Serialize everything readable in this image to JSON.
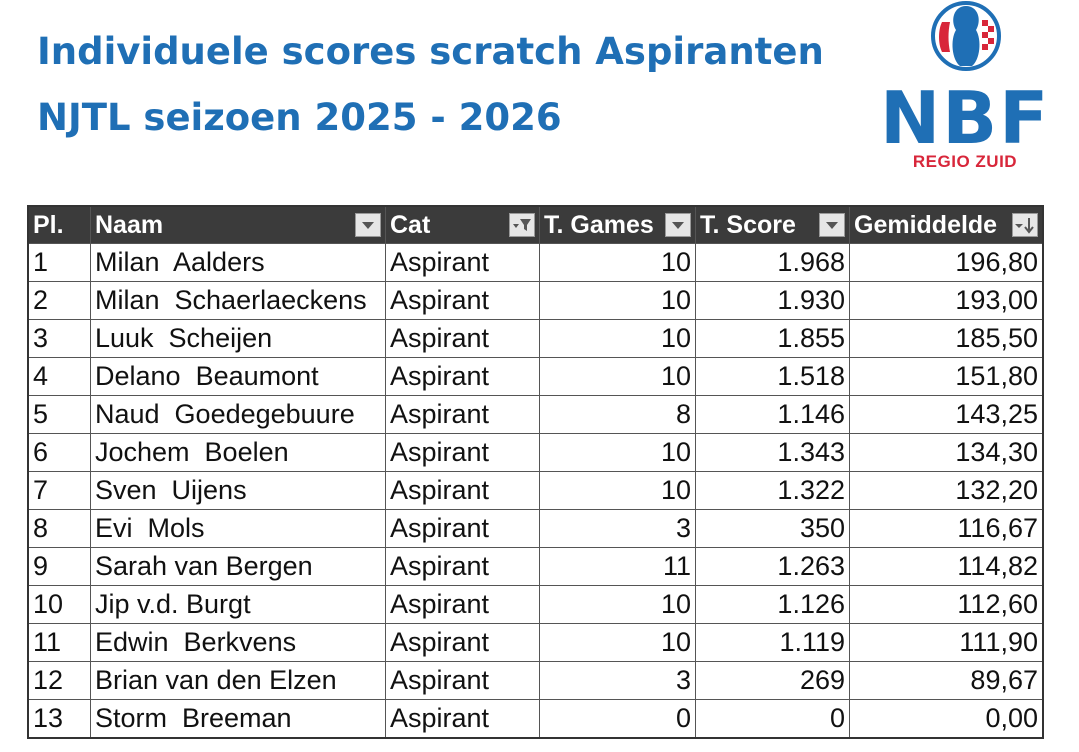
{
  "header": {
    "title_line1": "Individuele scores scratch Aspiranten",
    "title_line2": "NJTL seizoen 2025 - 2026"
  },
  "logo": {
    "text": "NBF",
    "subtext": "REGIO ZUID",
    "colors": {
      "blue": "#1f6fb5",
      "red": "#d8263a"
    }
  },
  "table": {
    "columns": [
      "Pl.",
      "Naam",
      "Cat",
      "T. Games",
      "T. Score",
      "Gemiddelde"
    ],
    "rows": [
      [
        "1",
        "Milan  Aalders",
        "Aspirant",
        "10",
        "1.968",
        "196,80"
      ],
      [
        "2",
        "Milan  Schaerlaeckens",
        "Aspirant",
        "10",
        "1.930",
        "193,00"
      ],
      [
        "3",
        "Luuk  Scheijen",
        "Aspirant",
        "10",
        "1.855",
        "185,50"
      ],
      [
        "4",
        "Delano  Beaumont",
        "Aspirant",
        "10",
        "1.518",
        "151,80"
      ],
      [
        "5",
        "Naud  Goedegebuure",
        "Aspirant",
        "8",
        "1.146",
        "143,25"
      ],
      [
        "6",
        "Jochem  Boelen",
        "Aspirant",
        "10",
        "1.343",
        "134,30"
      ],
      [
        "7",
        "Sven  Uijens",
        "Aspirant",
        "10",
        "1.322",
        "132,20"
      ],
      [
        "8",
        "Evi  Mols",
        "Aspirant",
        "3",
        "350",
        "116,67"
      ],
      [
        "9",
        "Sarah van Bergen",
        "Aspirant",
        "11",
        "1.263",
        "114,82"
      ],
      [
        "10",
        "Jip v.d. Burgt",
        "Aspirant",
        "10",
        "1.126",
        "112,60"
      ],
      [
        "11",
        "Edwin  Berkvens",
        "Aspirant",
        "10",
        "1.119",
        "111,90"
      ],
      [
        "12",
        "Brian van den Elzen",
        "Aspirant",
        "3",
        "269",
        "89,67"
      ],
      [
        "13",
        "Storm  Breeman",
        "Aspirant",
        "0",
        "0",
        "0,00"
      ]
    ]
  }
}
